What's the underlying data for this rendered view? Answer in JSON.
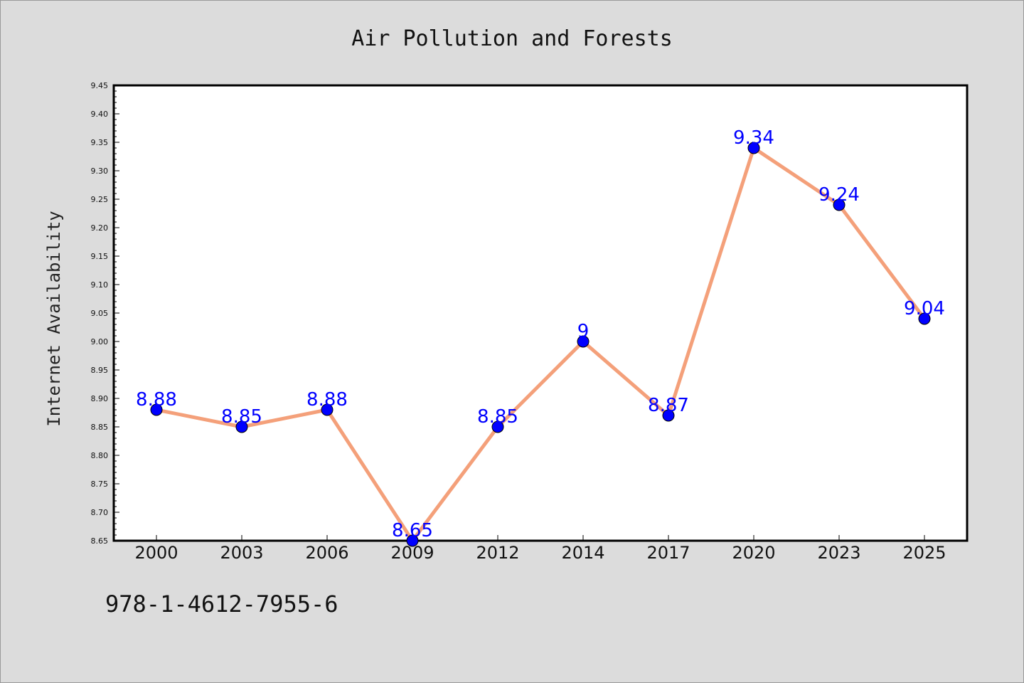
{
  "chart_data": {
    "type": "line",
    "title": "Air Pollution and Forests",
    "xlabel": "",
    "ylabel": "Internet Availability",
    "categories": [
      "2000",
      "2003",
      "2006",
      "2009",
      "2012",
      "2014",
      "2017",
      "2020",
      "2023",
      "2025"
    ],
    "series": [
      {
        "values": [
          8.88,
          8.85,
          8.88,
          8.65,
          8.85,
          9.0,
          8.87,
          9.34,
          9.24,
          9.04
        ],
        "labels": [
          "8.88",
          "8.85",
          "8.88",
          "8.65",
          "8.85",
          "9",
          "8.87",
          "9.34",
          "9.24",
          "9.04"
        ]
      }
    ],
    "ylim": [
      8.65,
      9.45
    ],
    "yticks": [
      "8.65",
      "8.70",
      "8.75",
      "8.80",
      "8.85",
      "8.90",
      "8.95",
      "9.00",
      "9.05",
      "9.10",
      "9.15",
      "9.20",
      "9.25",
      "9.30",
      "9.35",
      "9.40",
      "9.45"
    ],
    "grid": false,
    "colors": {
      "line": "#f4a07a",
      "marker": "#0000ff",
      "marker_edge": "#000000",
      "data_label": "#0000ff",
      "background": "#dcdcdc",
      "plot_background": "#ffffff"
    }
  },
  "footer": {
    "isbn": "978-1-4612-7955-6"
  }
}
